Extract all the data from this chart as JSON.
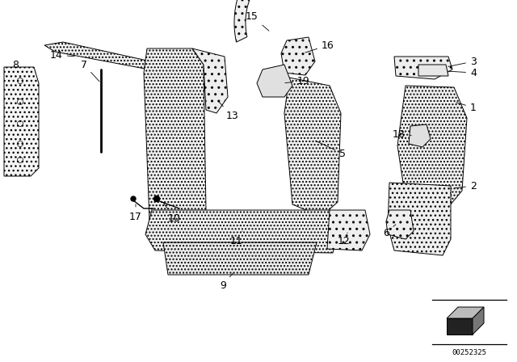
{
  "bg_color": "#ffffff",
  "diagram_number": "00252325",
  "line_color": "#000000",
  "text_color": "#000000",
  "font_size_labels": 9,
  "fig_width": 6.4,
  "fig_height": 4.48,
  "dpi": 100
}
